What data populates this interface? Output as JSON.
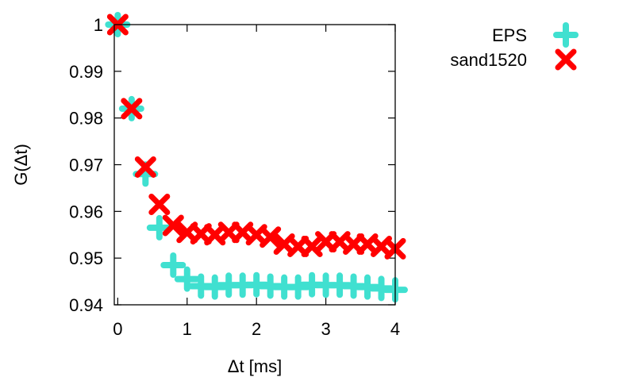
{
  "chart_data": {
    "type": "scatter",
    "xlabel": "Δt [ms]",
    "ylabel": "G(Δt)",
    "xlim": [
      -0.05,
      4.0
    ],
    "ylim": [
      0.94,
      1.0
    ],
    "xticks": [
      0,
      1,
      2,
      3,
      4
    ],
    "yticks": [
      0.94,
      0.95,
      0.96,
      0.97,
      0.98,
      0.99,
      1
    ],
    "xtick_labels": [
      "0",
      "1",
      "2",
      "3",
      "4"
    ],
    "ytick_labels": [
      "0.94",
      "0.95",
      "0.96",
      "0.97",
      "0.98",
      "0.99",
      "1"
    ],
    "grid": false,
    "legend_position": "outside-top-right",
    "series": [
      {
        "name": "EPS",
        "marker": "plus",
        "color": "#40e0d0",
        "x": [
          0,
          0.2,
          0.4,
          0.6,
          0.8,
          1.0,
          1.2,
          1.4,
          1.6,
          1.8,
          2.0,
          2.2,
          2.4,
          2.6,
          2.8,
          3.0,
          3.2,
          3.4,
          3.6,
          3.8,
          4.0
        ],
        "y": [
          1.0,
          0.982,
          0.968,
          0.9565,
          0.9485,
          0.9455,
          0.944,
          0.9438,
          0.9442,
          0.9442,
          0.9443,
          0.944,
          0.9438,
          0.9438,
          0.9443,
          0.9442,
          0.9442,
          0.944,
          0.9438,
          0.9435,
          0.9432
        ]
      },
      {
        "name": "sand1520",
        "marker": "cross",
        "color": "#ff0000",
        "x": [
          0,
          0.2,
          0.4,
          0.6,
          0.8,
          1.0,
          1.2,
          1.4,
          1.6,
          1.8,
          2.0,
          2.2,
          2.4,
          2.6,
          2.8,
          3.0,
          3.2,
          3.4,
          3.6,
          3.8,
          4.0
        ],
        "y": [
          1.0,
          0.982,
          0.9695,
          0.9615,
          0.957,
          0.9555,
          0.9552,
          0.955,
          0.9555,
          0.9555,
          0.955,
          0.9545,
          0.953,
          0.9525,
          0.9525,
          0.9535,
          0.9535,
          0.953,
          0.953,
          0.9525,
          0.952
        ]
      }
    ]
  }
}
